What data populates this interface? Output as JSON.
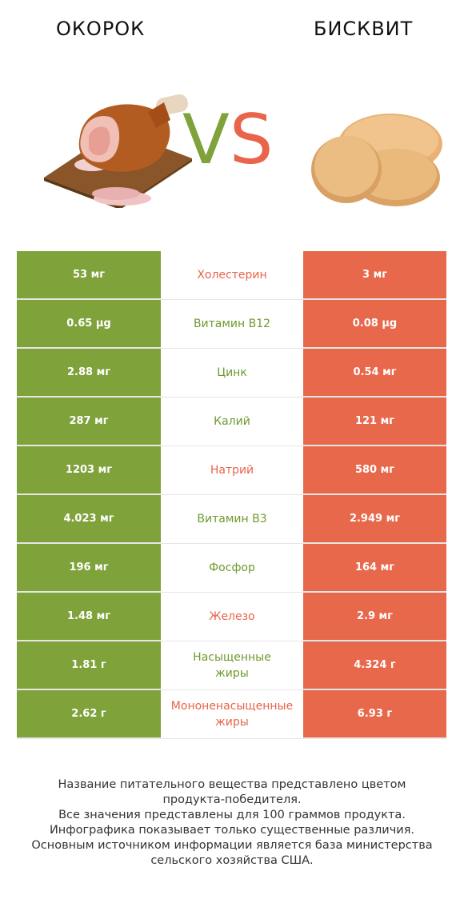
{
  "header": {
    "left_title": "ОКОРОК",
    "right_title": "БИСКВИТ",
    "vs_v": "V",
    "vs_s": "S"
  },
  "colors": {
    "left_accent": "#7fa23a",
    "right_accent": "#e8684b"
  },
  "images": {
    "left": "ham-image",
    "right": "biscuit-image"
  },
  "rows": [
    {
      "left": "53 мг",
      "name": "Холестерин",
      "right": "3 мг",
      "winner": "right"
    },
    {
      "left": "0.65 µg",
      "name": "Витамин B12",
      "right": "0.08 µg",
      "winner": "left"
    },
    {
      "left": "2.88 мг",
      "name": "Цинк",
      "right": "0.54 мг",
      "winner": "left"
    },
    {
      "left": "287 мг",
      "name": "Калий",
      "right": "121 мг",
      "winner": "left"
    },
    {
      "left": "1203 мг",
      "name": "Натрий",
      "right": "580 мг",
      "winner": "right"
    },
    {
      "left": "4.023 мг",
      "name": "Витамин B3",
      "right": "2.949 мг",
      "winner": "left"
    },
    {
      "left": "196 мг",
      "name": "Фосфор",
      "right": "164 мг",
      "winner": "left"
    },
    {
      "left": "1.48 мг",
      "name": "Железо",
      "right": "2.9 мг",
      "winner": "right"
    },
    {
      "left": "1.81 г",
      "name": "Насыщенные\nжиры",
      "right": "4.324 г",
      "winner": "left"
    },
    {
      "left": "2.62 г",
      "name": "Мононенасыщенные\nжиры",
      "right": "6.93 г",
      "winner": "right"
    }
  ],
  "footer": {
    "line1": "Название питательного вещества представлено цветом",
    "line2": "продукта-победителя.",
    "line3": "Все значения представлены для 100 граммов продукта.",
    "line4": "Инфографика показывает только существенные различия.",
    "line5": "Основным источником информации является база министерства",
    "line6": "сельского хозяйства США."
  }
}
